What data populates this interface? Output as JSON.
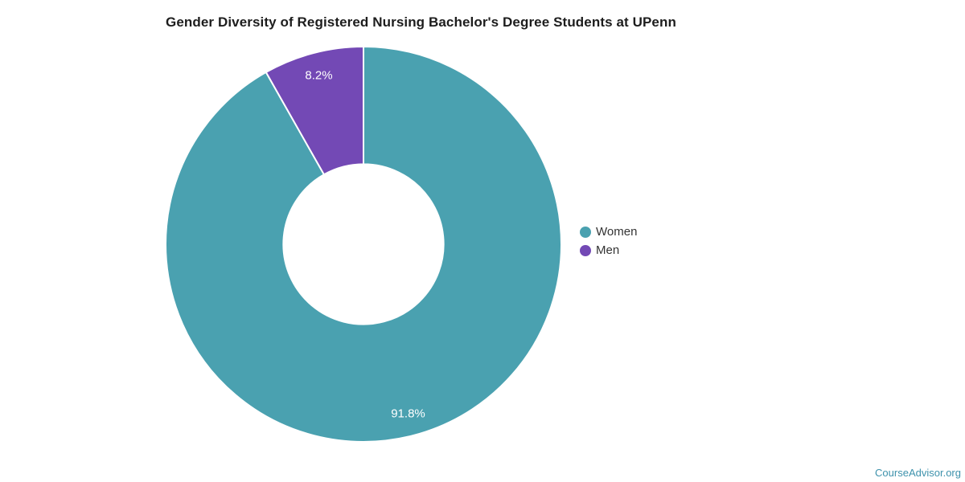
{
  "chart_data": {
    "type": "pie",
    "subtype": "donut",
    "title": "Gender Diversity of Registered Nursing Bachelor's Degree Students at UPenn",
    "labels": [
      "Women",
      "Men"
    ],
    "values": [
      91.8,
      8.2
    ],
    "value_labels": [
      "91.8%",
      "8.2%"
    ],
    "colors": [
      "#4AA1B0",
      "#7349B5"
    ],
    "slice_label_color": "#ffffff",
    "start_angle_deg": 0,
    "direction": "clockwise",
    "inner_radius_ratio": 0.405,
    "label_radius_ratio": 0.885,
    "legend": {
      "position": "right",
      "entries": [
        "Women",
        "Men"
      ]
    }
  },
  "footer": {
    "brand_link": "CourseAdvisor.org",
    "brand_color": "#3e92ac"
  }
}
